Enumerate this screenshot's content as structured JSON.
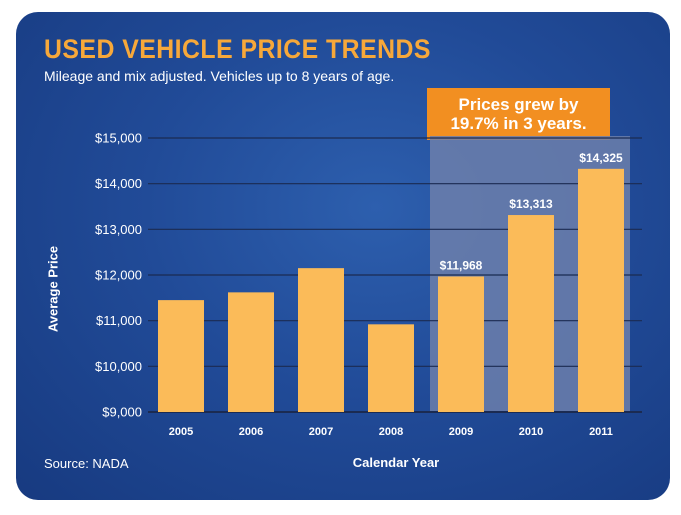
{
  "header": {
    "title": "USED VEHICLE PRICE TRENDS",
    "subtitle": "Mileage and mix adjusted. Vehicles up to 8 years of age."
  },
  "callout": {
    "line1": "Prices grew by",
    "line2": "19.7% in 3 years."
  },
  "footer": {
    "source": "Source: NADA"
  },
  "colors": {
    "bar": "#fbbb59",
    "highlight_band": "#6c7fab",
    "callout": "#f28f21",
    "title": "#f7a83a",
    "gridline": "#1b2b52"
  },
  "chart_data": {
    "type": "bar",
    "title": "USED VEHICLE PRICE TRENDS",
    "subtitle": "Mileage and mix adjusted. Vehicles up to 8 years of age.",
    "xlabel": "Calendar Year",
    "ylabel": "Average Price",
    "categories": [
      "2005",
      "2006",
      "2007",
      "2008",
      "2009",
      "2010",
      "2011"
    ],
    "values": [
      11450,
      11620,
      12150,
      10920,
      11968,
      13313,
      14325
    ],
    "data_labels": [
      "",
      "",
      "",
      "",
      "$11,968",
      "$13,313",
      "$14,325"
    ],
    "ylim": [
      9000,
      15000
    ],
    "yticks": [
      9000,
      10000,
      11000,
      12000,
      13000,
      14000,
      15000
    ],
    "ytick_labels": [
      "$9,000",
      "$10,000",
      "$11,000",
      "$12,000",
      "$13,000",
      "$14,000",
      "$15,000"
    ],
    "grid": true,
    "highlight_categories": [
      "2009",
      "2010",
      "2011"
    ]
  }
}
